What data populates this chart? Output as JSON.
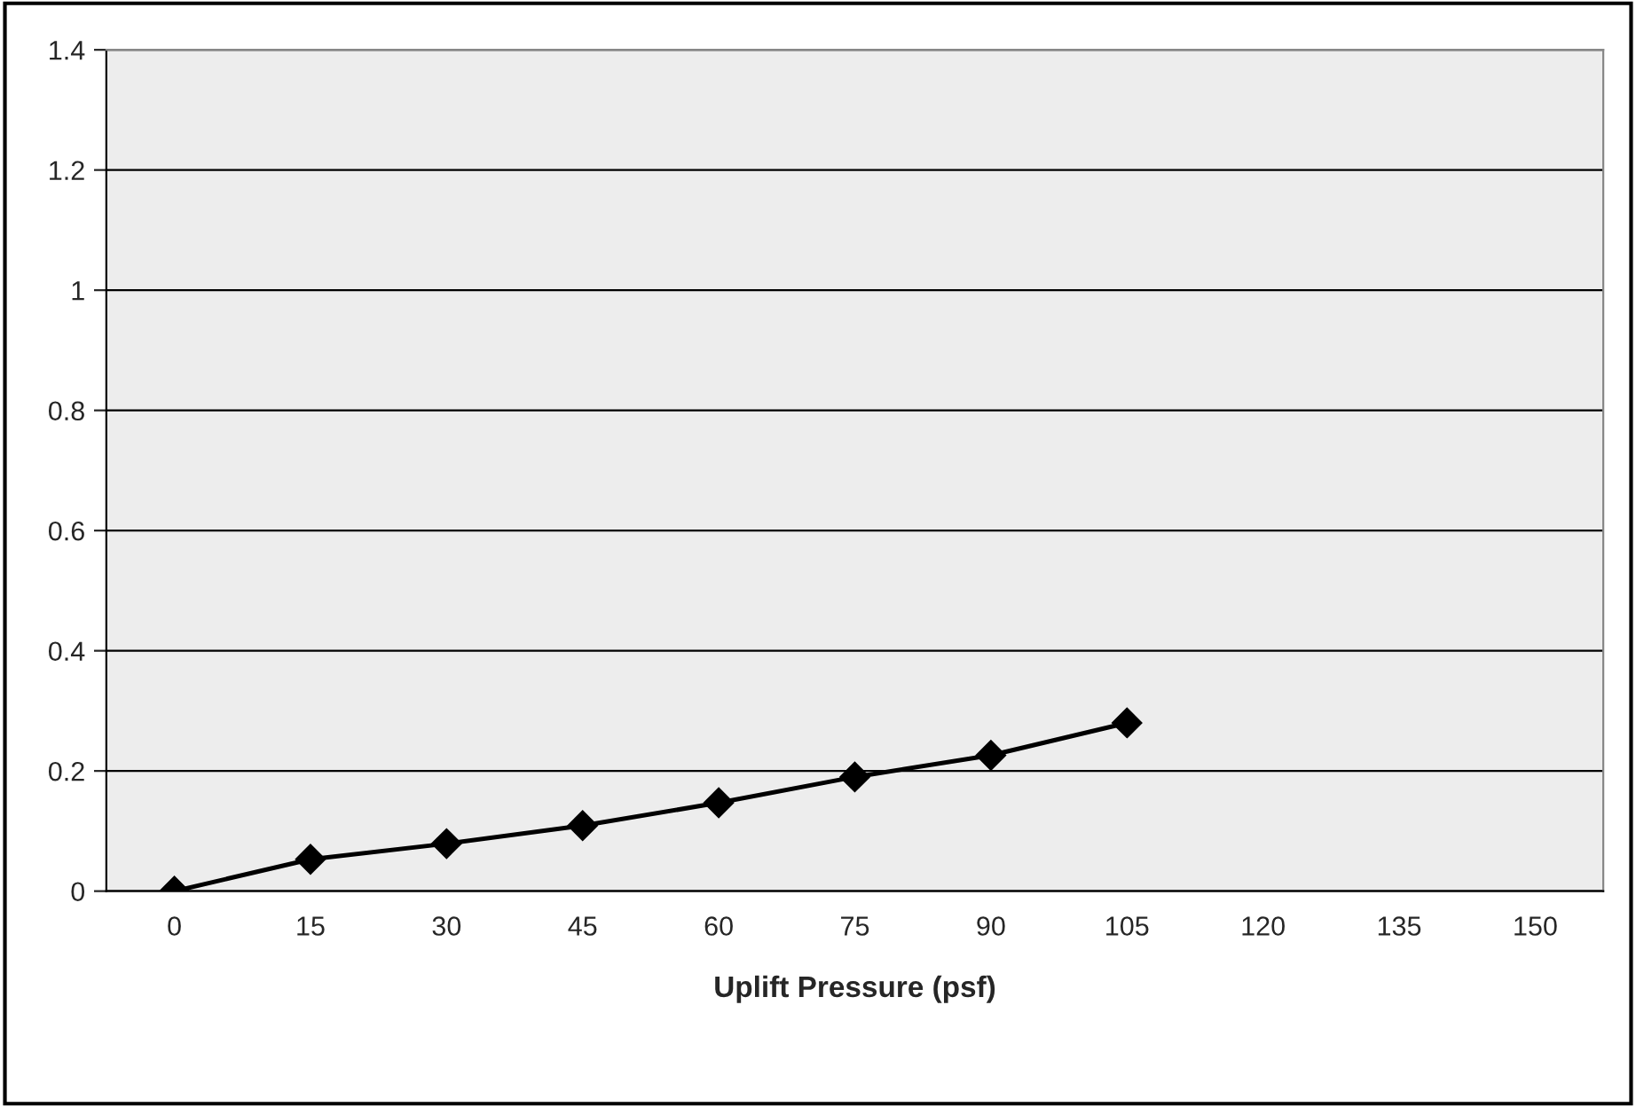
{
  "chart_data": {
    "type": "line",
    "xlabel": "Uplift Pressure (psf)",
    "categories": [
      "0",
      "15",
      "30",
      "45",
      "60",
      "75",
      "90",
      "105",
      "120",
      "135",
      "150"
    ],
    "series": [
      {
        "color": "#000000",
        "values": [
          0,
          0.053,
          0.079,
          0.109,
          0.147,
          0.19,
          0.226,
          0.28,
          null,
          null,
          null
        ]
      }
    ],
    "ylim": [
      0,
      1.4
    ],
    "yticks": [
      0,
      0.2,
      0.4,
      0.6,
      0.8,
      1,
      1.2,
      1.4
    ],
    "grid": "y",
    "marker": "diamond",
    "line_style": "solid"
  }
}
